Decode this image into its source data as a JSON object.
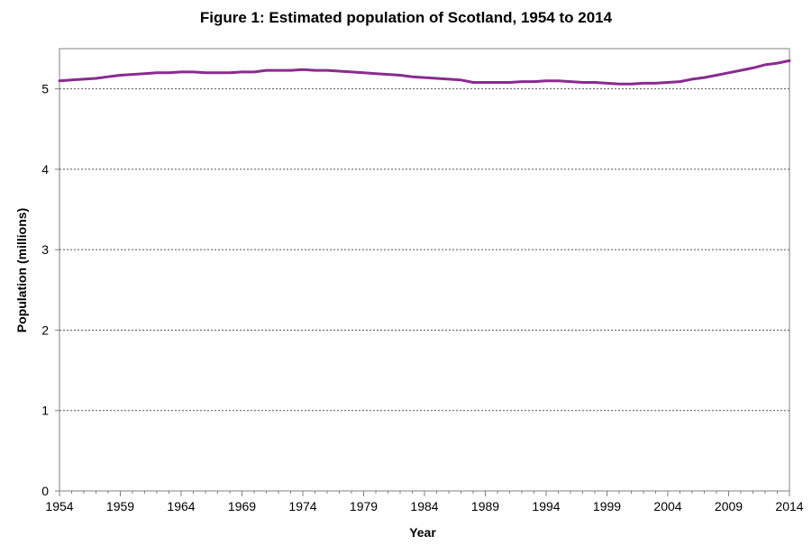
{
  "chart_data": {
    "type": "line",
    "title": "Figure 1: Estimated population of Scotland, 1954 to 2014",
    "xlabel": "Year",
    "ylabel": "Population (millions)",
    "xlim": [
      1954,
      2014
    ],
    "ylim": [
      0,
      5.5
    ],
    "x_ticks": [
      1954,
      1959,
      1964,
      1969,
      1974,
      1979,
      1984,
      1989,
      1994,
      1999,
      2004,
      2009,
      2014
    ],
    "y_ticks": [
      0,
      1,
      2,
      3,
      4,
      5
    ],
    "grid": "horizontal dashed",
    "legend": "none",
    "series_color": "#8B2A8F",
    "series": [
      {
        "x": [
          1954,
          1955,
          1956,
          1957,
          1958,
          1959,
          1960,
          1961,
          1962,
          1963,
          1964,
          1965,
          1966,
          1967,
          1968,
          1969,
          1970,
          1971,
          1972,
          1973,
          1974,
          1975,
          1976,
          1977,
          1978,
          1979,
          1980,
          1981,
          1982,
          1983,
          1984,
          1985,
          1986,
          1987,
          1988,
          1989,
          1990,
          1991,
          1992,
          1993,
          1994,
          1995,
          1996,
          1997,
          1998,
          1999,
          2000,
          2001,
          2002,
          2003,
          2004,
          2005,
          2006,
          2007,
          2008,
          2009,
          2010,
          2011,
          2012,
          2013,
          2014
        ],
        "values": [
          5.1,
          5.11,
          5.12,
          5.13,
          5.15,
          5.17,
          5.18,
          5.19,
          5.2,
          5.2,
          5.21,
          5.21,
          5.2,
          5.2,
          5.2,
          5.21,
          5.21,
          5.23,
          5.23,
          5.23,
          5.24,
          5.23,
          5.23,
          5.22,
          5.21,
          5.2,
          5.19,
          5.18,
          5.17,
          5.15,
          5.14,
          5.13,
          5.12,
          5.11,
          5.08,
          5.08,
          5.08,
          5.08,
          5.09,
          5.09,
          5.1,
          5.1,
          5.09,
          5.08,
          5.08,
          5.07,
          5.06,
          5.06,
          5.07,
          5.07,
          5.08,
          5.09,
          5.12,
          5.14,
          5.17,
          5.2,
          5.23,
          5.26,
          5.3,
          5.32,
          5.35
        ]
      }
    ]
  }
}
